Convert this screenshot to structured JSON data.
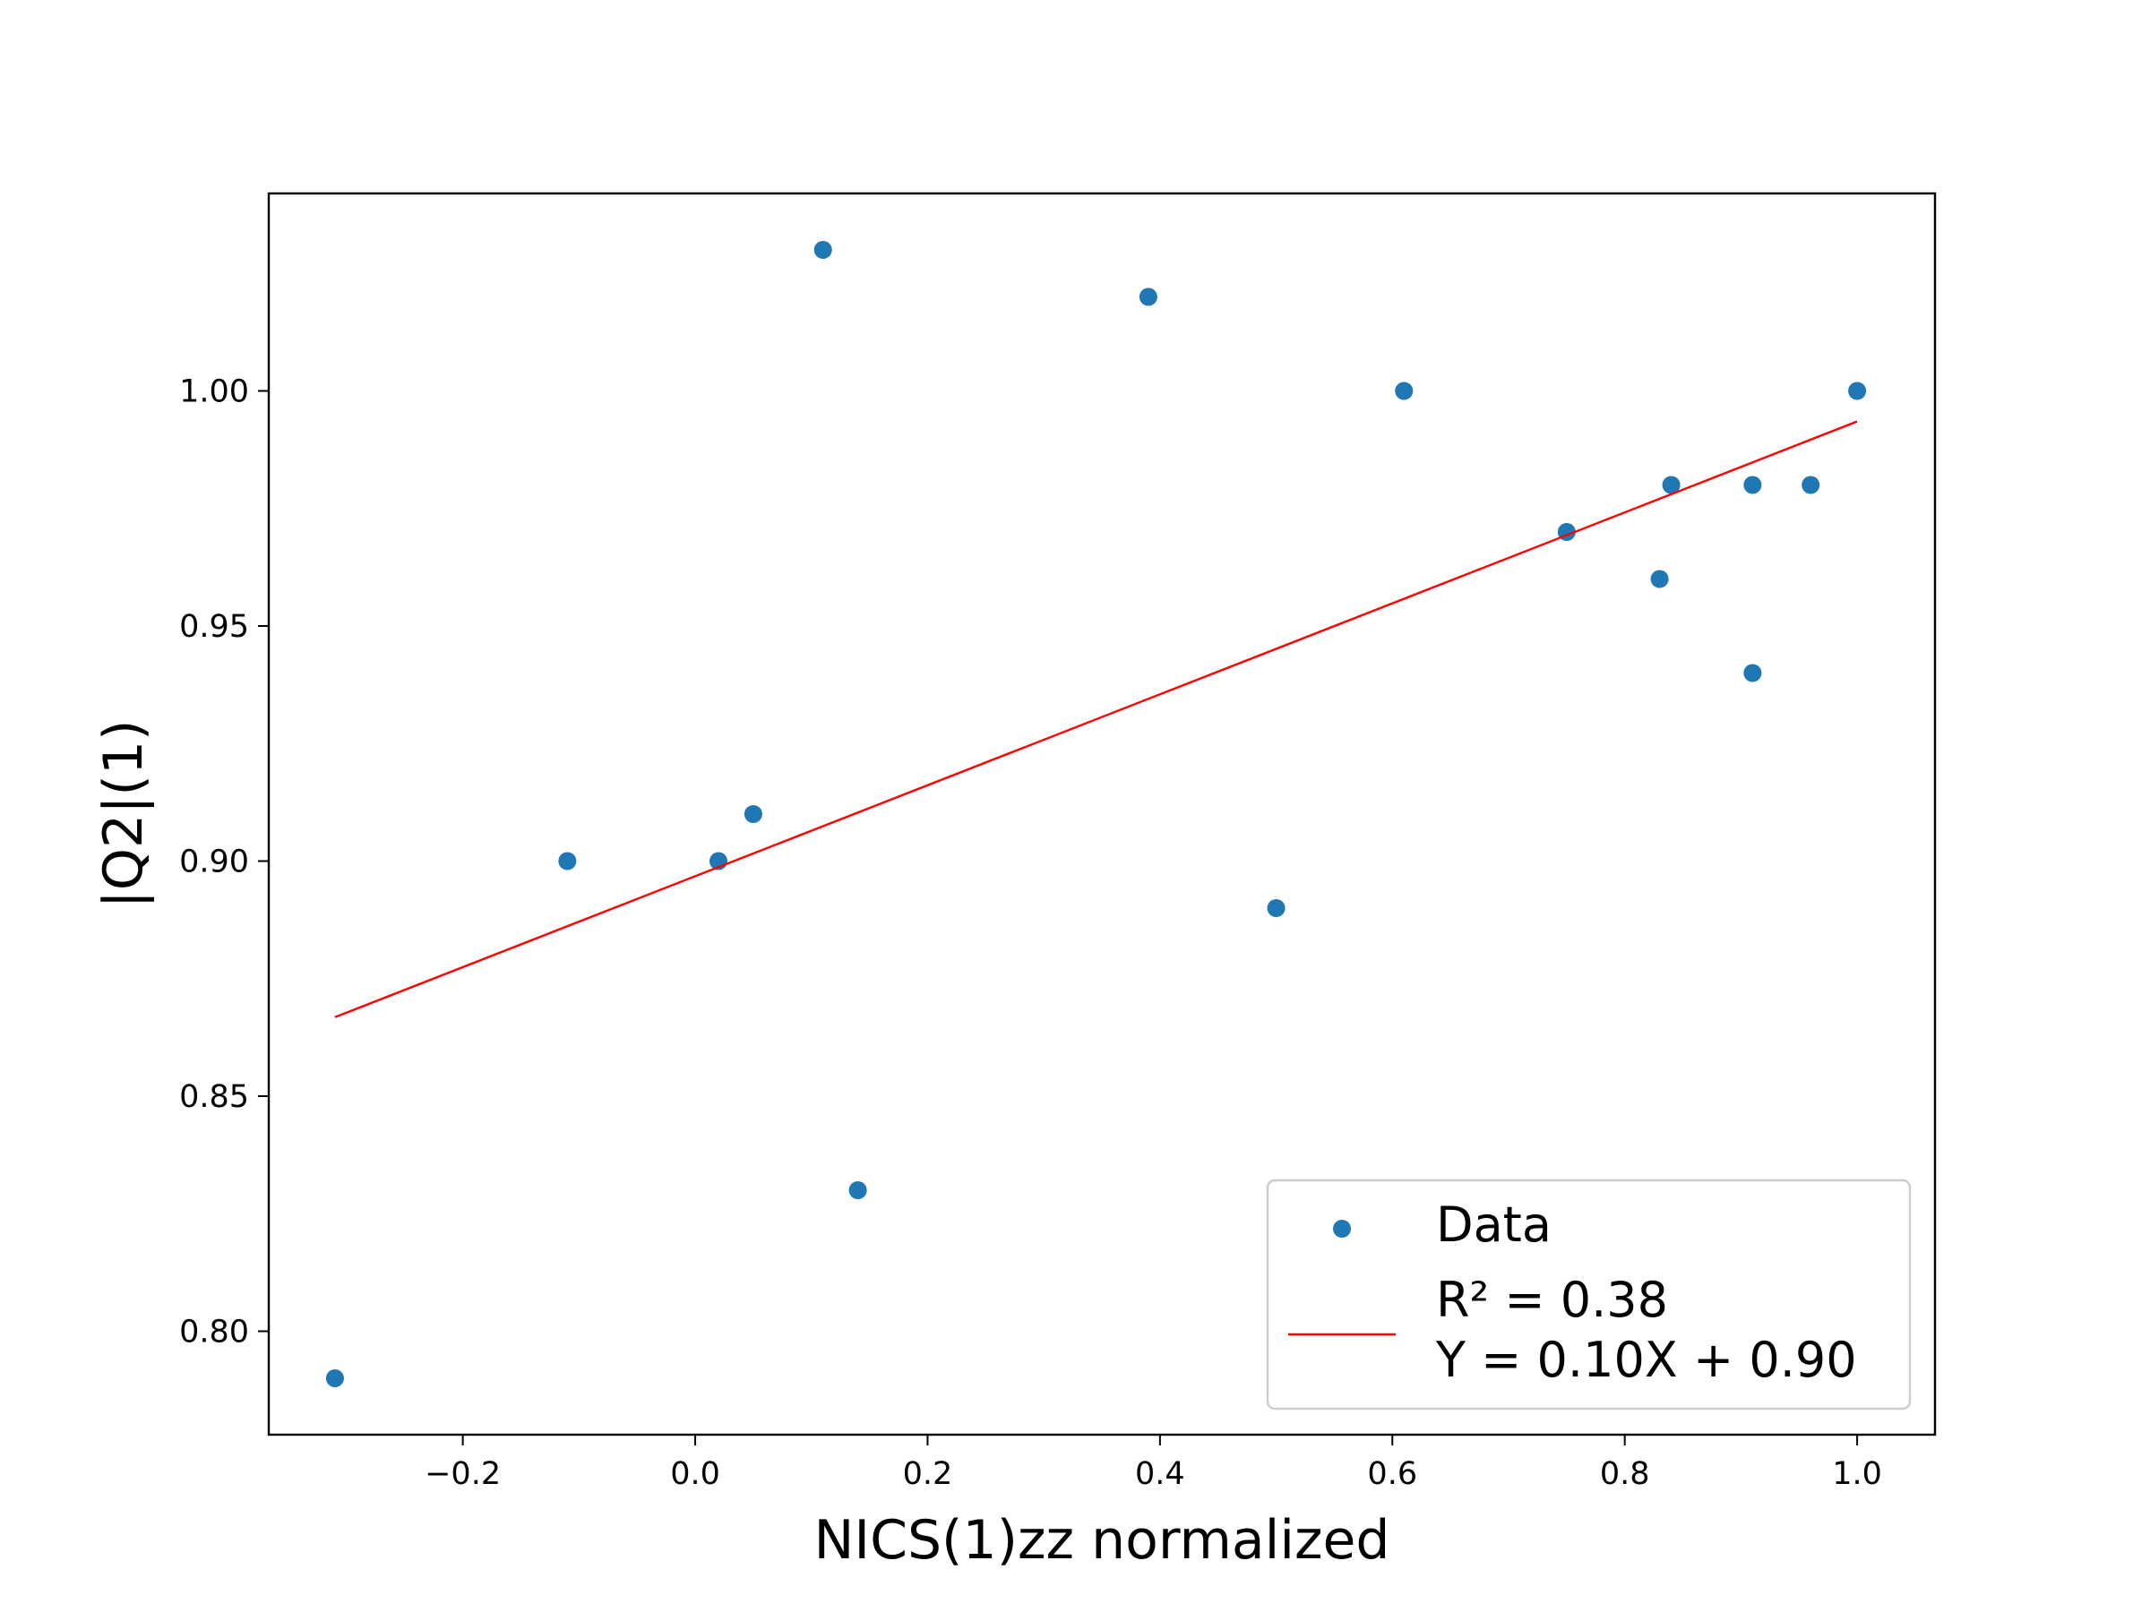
{
  "chart_data": {
    "type": "scatter",
    "xlabel": "NICS(1)zz normalized",
    "ylabel": "|Q2|(1)",
    "xlim": [
      -0.367,
      1.067
    ],
    "ylim": [
      0.778,
      1.042
    ],
    "x_ticks": [
      {
        "value": -0.2,
        "label": "−0.2"
      },
      {
        "value": 0.0,
        "label": "0.0"
      },
      {
        "value": 0.2,
        "label": "0.2"
      },
      {
        "value": 0.4,
        "label": "0.4"
      },
      {
        "value": 0.6,
        "label": "0.6"
      },
      {
        "value": 0.8,
        "label": "0.8"
      },
      {
        "value": 1.0,
        "label": "1.0"
      }
    ],
    "y_ticks": [
      {
        "value": 0.8,
        "label": "0.80"
      },
      {
        "value": 0.85,
        "label": "0.85"
      },
      {
        "value": 0.9,
        "label": "0.90"
      },
      {
        "value": 0.95,
        "label": "0.95"
      },
      {
        "value": 1.0,
        "label": "1.00"
      }
    ],
    "grid": false,
    "series": [
      {
        "name": "Data",
        "kind": "scatter",
        "color": "#1f77b4",
        "x": [
          -0.31,
          -0.11,
          0.02,
          0.05,
          0.11,
          0.14,
          0.39,
          0.5,
          0.61,
          0.75,
          0.83,
          0.84,
          0.91,
          0.91,
          0.96,
          1.0
        ],
        "y": [
          0.79,
          0.9,
          0.9,
          0.91,
          1.03,
          0.83,
          1.02,
          0.89,
          1.0,
          0.97,
          0.96,
          0.98,
          0.98,
          0.94,
          0.98,
          1.0
        ]
      },
      {
        "name": "R² = 0.38",
        "name_line2": "Y = 0.10X + 0.90",
        "kind": "line",
        "color": "#ff0000",
        "x": [
          -0.31,
          1.0
        ],
        "y": [
          0.8668,
          0.9935
        ]
      }
    ],
    "legend": {
      "placement": "lower-right",
      "entries": [
        "Data",
        "R² = 0.38",
        "Y = 0.10X + 0.90"
      ]
    }
  }
}
